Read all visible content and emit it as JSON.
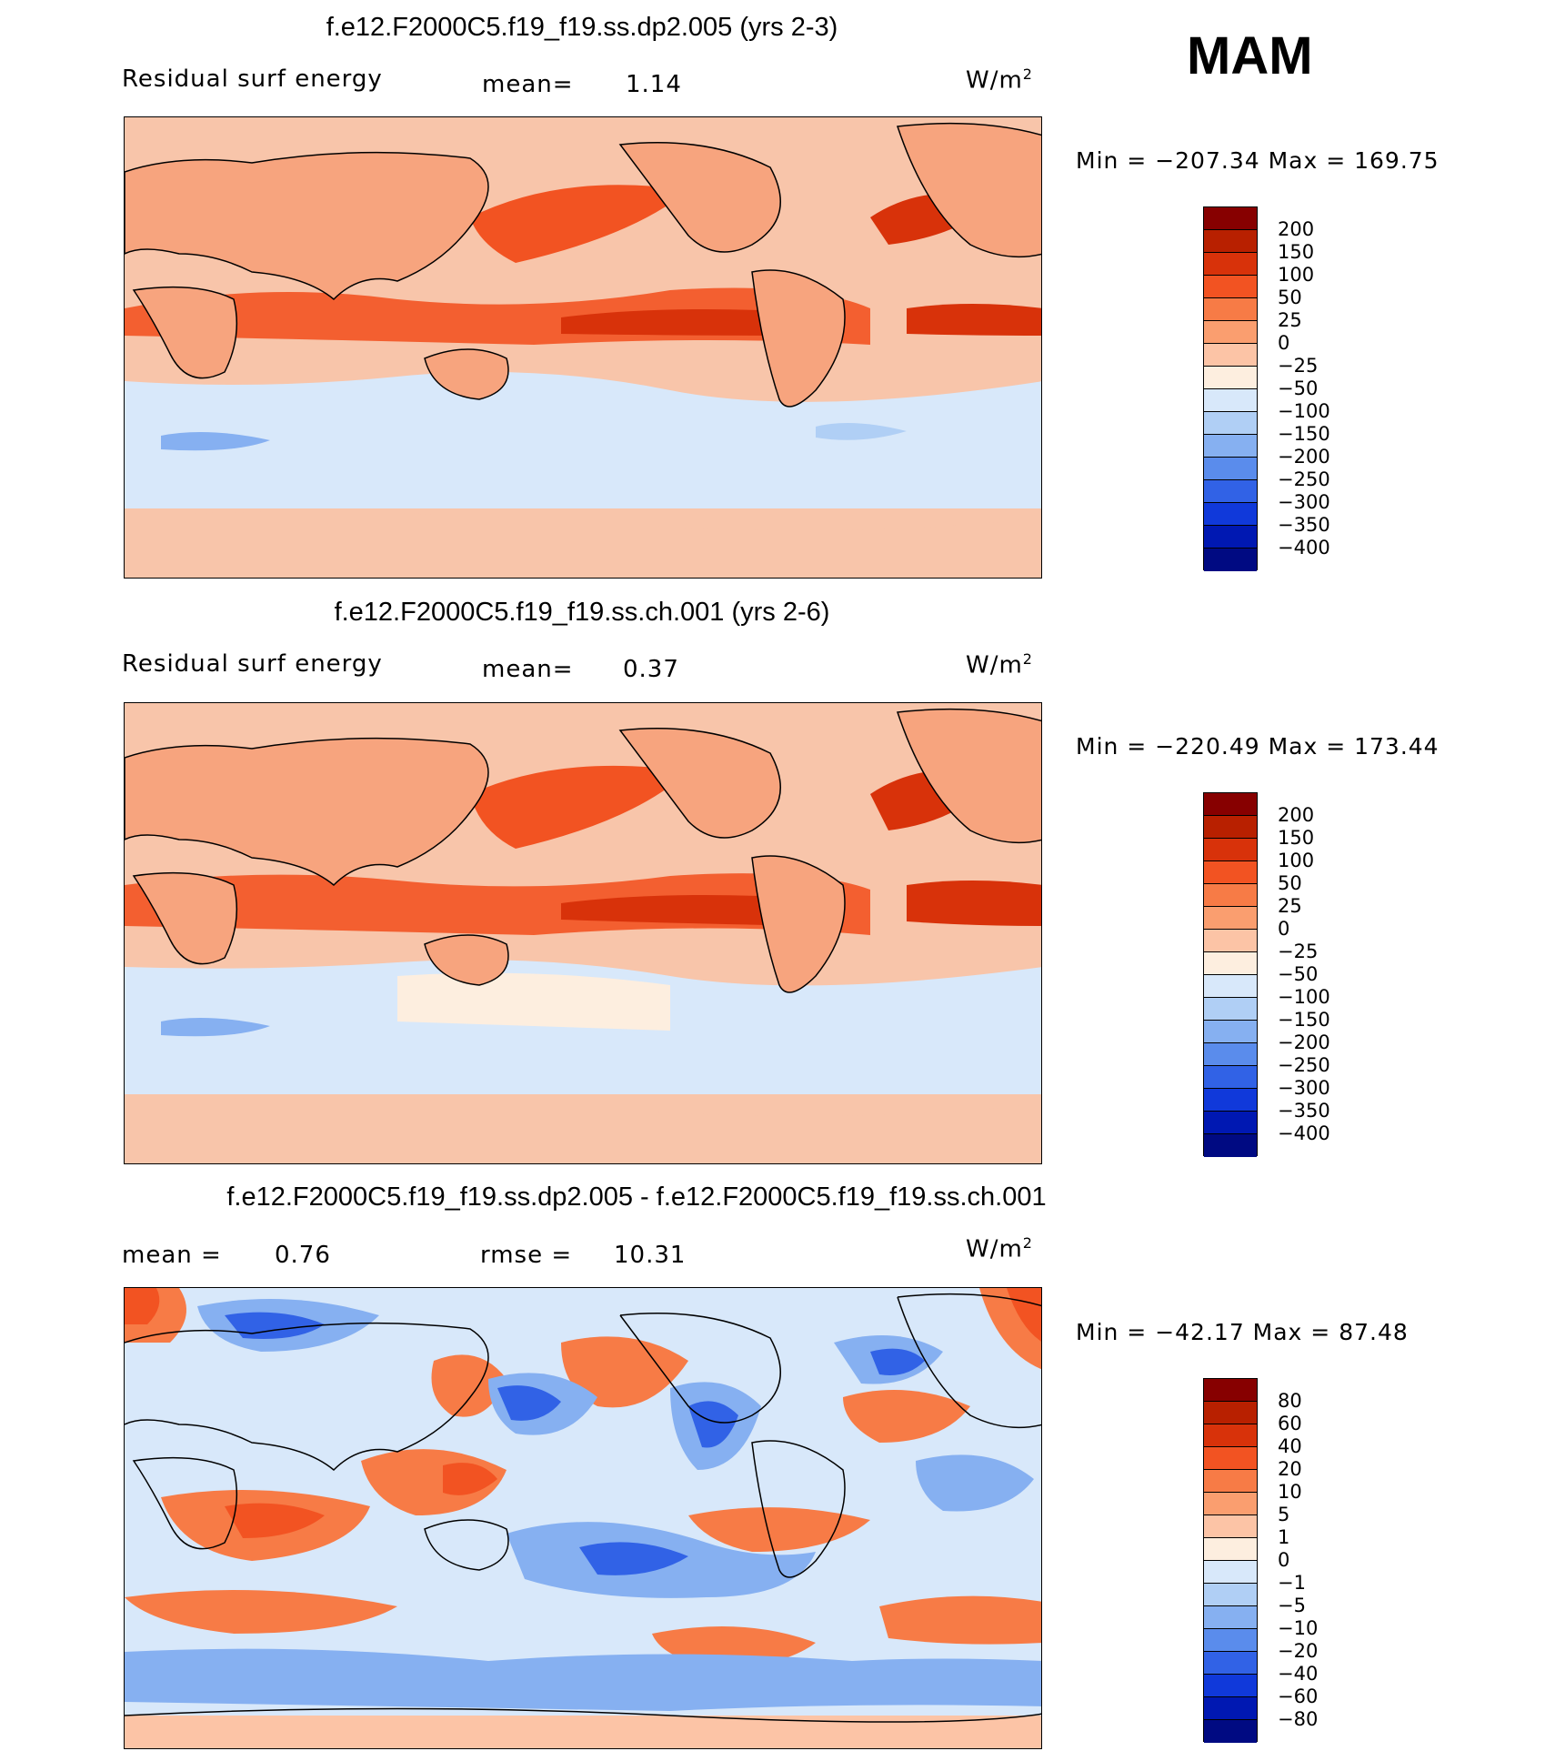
{
  "season": "MAM",
  "panels": [
    {
      "title": "f.e12.F2000C5.f19_f19.ss.dp2.005 (yrs 2-3)",
      "left_label": "Residual surf energy",
      "stat1_label": "mean=",
      "stat1_value": "1.14",
      "units_text": "W/m",
      "units_sup": "2",
      "minmax": "Min = −207.34 Max = 169.75"
    },
    {
      "title": "f.e12.F2000C5.f19_f19.ss.ch.001 (yrs 2-6)",
      "left_label": "Residual surf energy",
      "stat1_label": "mean=",
      "stat1_value": "0.37",
      "units_text": "W/m",
      "units_sup": "2",
      "minmax": "Min = −220.49 Max = 173.44"
    },
    {
      "title": "f.e12.F2000C5.f19_f19.ss.dp2.005 - f.e12.F2000C5.f19_f19.ss.ch.001",
      "left_label": "mean =",
      "left_value": "0.76",
      "stat1_label": "rmse =",
      "stat1_value": "10.31",
      "units_text": "W/m",
      "units_sup": "2",
      "minmax": "Min = −42.17 Max =  87.48"
    }
  ],
  "colorbars": {
    "field_labels": [
      "200",
      "150",
      "100",
      "50",
      "25",
      "0",
      "−25",
      "−50",
      "−100",
      "−150",
      "−200",
      "−250",
      "−300",
      "−350",
      "−400"
    ],
    "diff_labels": [
      "80",
      "60",
      "40",
      "20",
      "10",
      "5",
      "1",
      "0",
      "−1",
      "−5",
      "−10",
      "−20",
      "−40",
      "−60",
      "−80"
    ],
    "colors": [
      "#870000",
      "#b82000",
      "#d8320a",
      "#f25322",
      "#f77b46",
      "#fa9e6f",
      "#fcc4a6",
      "#fdeedf",
      "#d8e8fa",
      "#b0cff5",
      "#86b0f1",
      "#5a8cec",
      "#3162e6",
      "#1039da",
      "#0018b2",
      "#000a82"
    ]
  },
  "map_legend": {
    "ocean_fill": "#f8c5aa",
    "land_fill": "#f7a47e",
    "coast_color": "#000000"
  }
}
